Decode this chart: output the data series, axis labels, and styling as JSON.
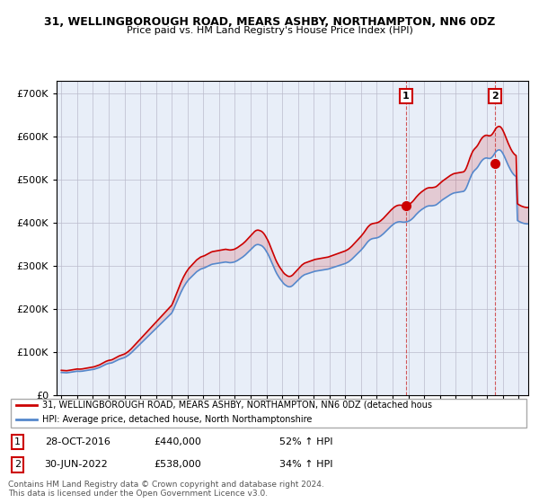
{
  "title": "31, WELLINGBOROUGH ROAD, MEARS ASHBY, NORTHAMPTON, NN6 0DZ",
  "subtitle": "Price paid vs. HM Land Registry's House Price Index (HPI)",
  "ylim": [
    0,
    730000
  ],
  "yticks": [
    0,
    100000,
    200000,
    300000,
    400000,
    500000,
    600000,
    700000
  ],
  "bg_color": "#e8eef8",
  "grid_color": "#bbbbcc",
  "hpi_color": "#5588cc",
  "price_color": "#cc0000",
  "sale1_date": 2016.83,
  "sale1_price": 440000,
  "sale2_date": 2022.5,
  "sale2_price": 538000,
  "legend_label1": "31, WELLINGBOROUGH ROAD, MEARS ASHBY, NORTHAMPTON, NN6 0DZ (detached hous",
  "legend_label2": "HPI: Average price, detached house, North Northamptonshire",
  "annotation1_date": "28-OCT-2016",
  "annotation1_price": "£440,000",
  "annotation1_hpi": "52% ↑ HPI",
  "annotation2_date": "30-JUN-2022",
  "annotation2_price": "£538,000",
  "annotation2_hpi": "34% ↑ HPI",
  "footer": "Contains HM Land Registry data © Crown copyright and database right 2024.\nThis data is licensed under the Open Government Licence v3.0.",
  "hpi_values": [
    52000,
    51800,
    51600,
    51400,
    51200,
    51500,
    52000,
    52500,
    53000,
    53500,
    54000,
    54500,
    54800,
    54600,
    54500,
    54700,
    55000,
    55500,
    56000,
    56500,
    57000,
    57500,
    58000,
    58500,
    59000,
    59500,
    60500,
    61500,
    62500,
    63500,
    65000,
    66500,
    68000,
    69500,
    71000,
    72000,
    73000,
    73500,
    74000,
    75000,
    76500,
    78000,
    79500,
    81000,
    82500,
    83500,
    84500,
    85500,
    86500,
    88000,
    90000,
    92000,
    94500,
    97000,
    100000,
    103000,
    106000,
    109000,
    112000,
    115000,
    118000,
    121000,
    124000,
    127000,
    130000,
    133000,
    136000,
    139000,
    142000,
    145000,
    148000,
    151000,
    154000,
    157000,
    160000,
    163000,
    166000,
    169000,
    172000,
    175000,
    178000,
    181000,
    184000,
    187000,
    190000,
    196000,
    203000,
    210000,
    217000,
    224000,
    231000,
    238000,
    244000,
    250000,
    255000,
    260000,
    264000,
    268000,
    271000,
    274000,
    277000,
    280000,
    283000,
    286000,
    288000,
    290000,
    292000,
    293000,
    294000,
    295000,
    296500,
    298000,
    299500,
    301000,
    302500,
    303500,
    304000,
    304500,
    305000,
    305500,
    306000,
    306500,
    307000,
    307500,
    308000,
    308500,
    308000,
    307500,
    307000,
    307000,
    307500,
    308000,
    309000,
    310500,
    312000,
    314000,
    316000,
    318000,
    320000,
    322500,
    325000,
    328000,
    331000,
    334000,
    337000,
    340000,
    343000,
    346000,
    348000,
    349000,
    349000,
    348000,
    347000,
    345000,
    342000,
    338000,
    333000,
    328000,
    322000,
    315000,
    308000,
    301000,
    294000,
    287000,
    281000,
    276000,
    271000,
    267000,
    263000,
    259000,
    256000,
    254000,
    252000,
    251000,
    251000,
    252000,
    254000,
    257000,
    260000,
    263000,
    266000,
    269000,
    272000,
    275000,
    277000,
    279000,
    280000,
    281000,
    282000,
    283000,
    284000,
    285000,
    286000,
    287000,
    287500,
    288000,
    288500,
    289000,
    289500,
    290000,
    290500,
    291000,
    291500,
    292000,
    293000,
    294000,
    295000,
    296000,
    297000,
    298000,
    299000,
    300000,
    301000,
    302000,
    303000,
    304000,
    305000,
    306500,
    308000,
    310000,
    312500,
    315000,
    318000,
    321000,
    324000,
    327000,
    330000,
    333000,
    336000,
    339500,
    343000,
    347000,
    351000,
    355000,
    358000,
    360500,
    362000,
    363000,
    363500,
    364000,
    364500,
    365500,
    367000,
    369000,
    371500,
    374000,
    377000,
    380000,
    383000,
    386000,
    389000,
    392000,
    394500,
    397000,
    399000,
    400500,
    401500,
    402000,
    402000,
    401500,
    401000,
    401000,
    401500,
    402000,
    403000,
    404500,
    406500,
    409000,
    412000,
    415500,
    419000,
    422000,
    425000,
    427500,
    430000,
    432000,
    434000,
    436000,
    437500,
    438500,
    439000,
    439000,
    439000,
    439500,
    440000,
    441000,
    443000,
    445500,
    448000,
    450500,
    453000,
    455000,
    457000,
    459000,
    461000,
    463000,
    465000,
    466500,
    468000,
    469000,
    469500,
    470000,
    470500,
    471000,
    471500,
    472000,
    472500,
    475000,
    480000,
    487000,
    495000,
    503000,
    510000,
    516000,
    520000,
    523000,
    526000,
    530000,
    535000,
    540000,
    544000,
    547000,
    549000,
    550000,
    550000,
    549000,
    549000,
    550000,
    553000,
    557000,
    562000,
    566000,
    568000,
    569000,
    568000,
    565000,
    560000,
    554000,
    547000,
    540000,
    533000,
    527000,
    521000,
    516000,
    512000,
    509000,
    507000,
    405000,
    403000,
    401500,
    400000,
    399000,
    398000,
    397500,
    397000,
    397000,
    397500,
    398000,
    399000,
    400000,
    401000,
    402500,
    403500,
    404000
  ]
}
